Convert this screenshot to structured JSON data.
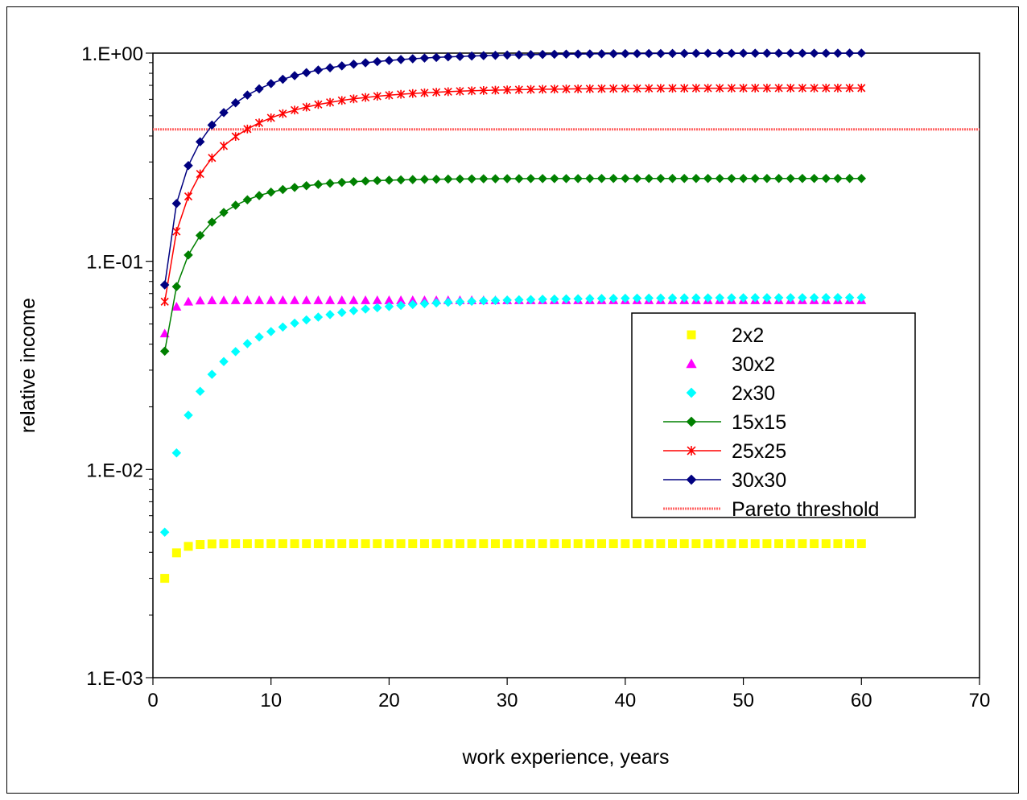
{
  "chart_data": {
    "type": "scatter",
    "xlabel": "work experience, years",
    "ylabel": "relative income",
    "xlim": [
      0,
      70
    ],
    "ylim": [
      0.001,
      1
    ],
    "y_scale": "log",
    "x_ticks": [
      0,
      10,
      20,
      30,
      40,
      50,
      60,
      70
    ],
    "y_ticks": [
      {
        "value": 1,
        "label": "1.E+00"
      },
      {
        "value": 0.1,
        "label": "1.E-01"
      },
      {
        "value": 0.01,
        "label": "1.E-02"
      },
      {
        "value": 0.001,
        "label": "1.E-03"
      }
    ],
    "grid": false,
    "legend_position": "center-right",
    "series": [
      {
        "name": "2x2",
        "color": "#FFFF00",
        "marker": "square",
        "line": false,
        "start": 0.003,
        "plateau": 0.0044,
        "rate": 1.2
      },
      {
        "name": "30x2",
        "color": "#FF00FF",
        "marker": "triangle",
        "line": false,
        "start": 0.045,
        "plateau": 0.065,
        "rate": 1.5
      },
      {
        "name": "2x30",
        "color": "#00FFFF",
        "marker": "diamond",
        "line": false,
        "start": 0.005,
        "plateau": 0.067,
        "rate": 0.12
      },
      {
        "name": "15x15",
        "color": "#008000",
        "marker": "diamond",
        "line": true,
        "start": 0.037,
        "plateau": 0.25,
        "rate": 0.2
      },
      {
        "name": "25x25",
        "color": "#FF0000",
        "marker": "star",
        "line": true,
        "start": 0.064,
        "plateau": 0.68,
        "rate": 0.13
      },
      {
        "name": "30x30",
        "color": "#000080",
        "marker": "diamond",
        "line": true,
        "start": 0.077,
        "plateau": 1.0,
        "rate": 0.13
      }
    ],
    "x_values": {
      "from": 1,
      "to": 60,
      "step": 1
    },
    "threshold": {
      "name": "Pareto threshold",
      "value": 0.43,
      "color": "#FF6666"
    }
  }
}
